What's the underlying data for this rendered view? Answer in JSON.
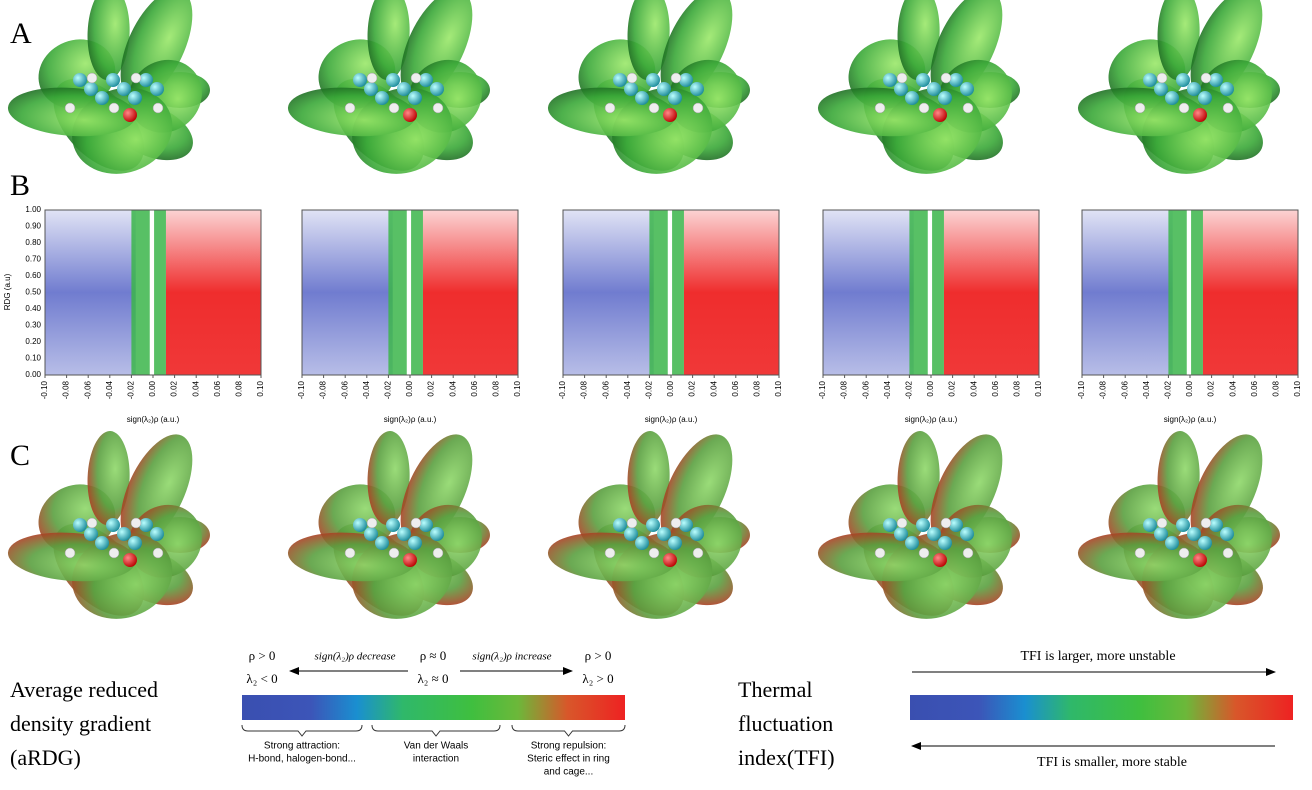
{
  "panels": [
    {
      "label": "A"
    },
    {
      "label": "B"
    },
    {
      "label": "C"
    }
  ],
  "rdg_plots": {
    "y_label": "RDG (a.u)",
    "y_ticks": [
      "0.00",
      "0.10",
      "0.20",
      "0.30",
      "0.40",
      "0.50",
      "0.60",
      "0.70",
      "0.80",
      "0.90",
      "1.00"
    ],
    "x_ticks": [
      "-0.10",
      "-0.08",
      "-0.06",
      "-0.04",
      "-0.02",
      "0.00",
      "0.02",
      "0.04",
      "0.06",
      "0.08",
      "0.10"
    ],
    "x_label": "sign(λ₂)ρ (a.u.)"
  },
  "ardg_legend": {
    "title": [
      "Average reduced",
      "density gradient",
      "(aRDG)"
    ],
    "left": [
      "ρ > 0",
      "λ₂ < 0"
    ],
    "middle": [
      "ρ ≈ 0",
      "λ₂ ≈ 0"
    ],
    "right": [
      "ρ > 0",
      "λ₂ > 0"
    ],
    "decrease": "sign(λ₂)ρ decrease",
    "increase": "sign(λ₂)ρ increase",
    "captions": [
      [
        "Strong attraction:",
        "H-bond, halogen-bond..."
      ],
      [
        "Van der Waals",
        "interaction"
      ],
      [
        "Strong repulsion:",
        "Steric effect in ring",
        "and cage..."
      ]
    ]
  },
  "tfi_legend": {
    "title": [
      "Thermal",
      "fluctuation",
      "index(TFI)"
    ],
    "larger": "TFI is larger, more unstable",
    "smaller": "TFI is smaller, more stable"
  }
}
